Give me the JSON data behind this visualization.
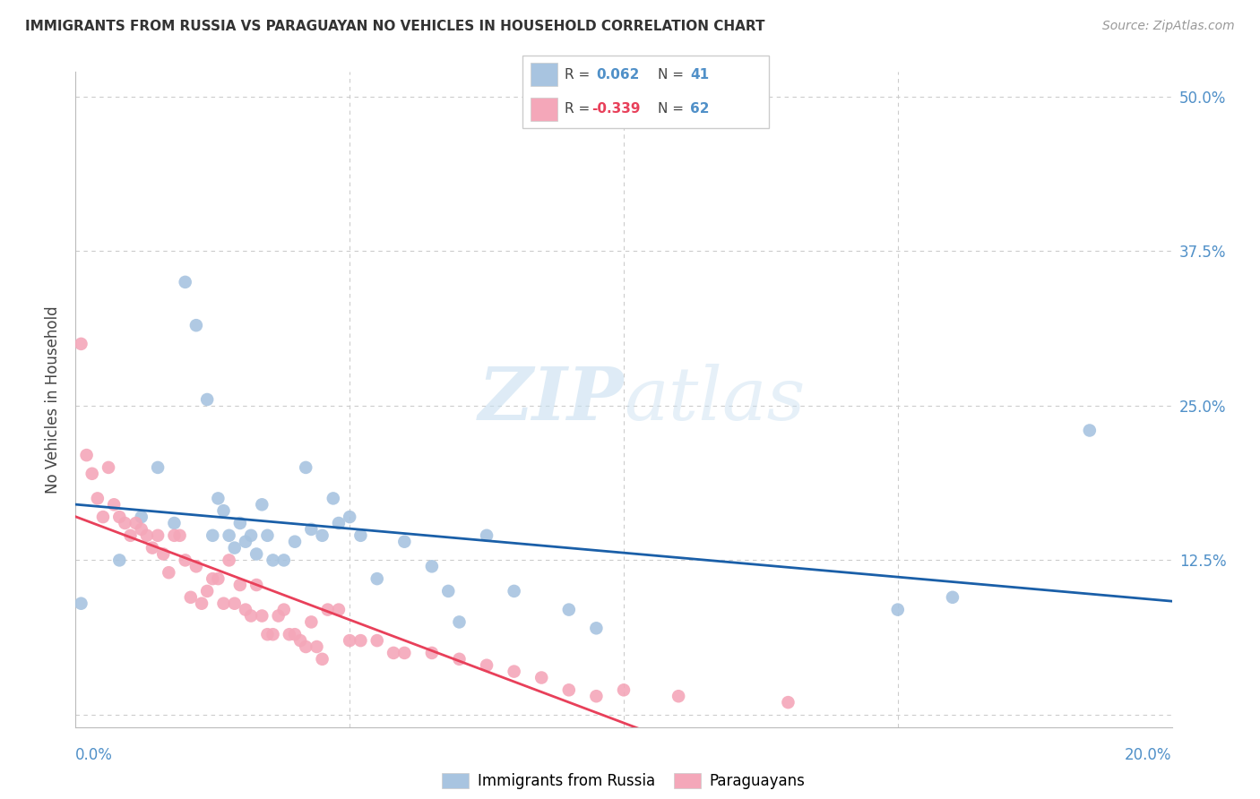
{
  "title": "IMMIGRANTS FROM RUSSIA VS PARAGUAYAN NO VEHICLES IN HOUSEHOLD CORRELATION CHART",
  "source": "Source: ZipAtlas.com",
  "ylabel": "No Vehicles in Household",
  "yticks": [
    0.0,
    0.125,
    0.25,
    0.375,
    0.5
  ],
  "ytick_labels": [
    "",
    "12.5%",
    "25.0%",
    "37.5%",
    "50.0%"
  ],
  "xlim": [
    0.0,
    0.2
  ],
  "ylim": [
    -0.01,
    0.52
  ],
  "russia_color": "#a8c4e0",
  "paraguay_color": "#f4a7b9",
  "russia_line_color": "#1a5fa8",
  "paraguay_line_color": "#e8405a",
  "watermark_zip": "ZIP",
  "watermark_atlas": "atlas",
  "russia_x": [
    0.001,
    0.008,
    0.012,
    0.015,
    0.018,
    0.02,
    0.022,
    0.024,
    0.025,
    0.026,
    0.027,
    0.028,
    0.029,
    0.03,
    0.031,
    0.032,
    0.033,
    0.034,
    0.035,
    0.036,
    0.038,
    0.04,
    0.042,
    0.043,
    0.045,
    0.047,
    0.048,
    0.05,
    0.052,
    0.055,
    0.06,
    0.065,
    0.068,
    0.07,
    0.075,
    0.08,
    0.09,
    0.095,
    0.15,
    0.16,
    0.185
  ],
  "russia_y": [
    0.09,
    0.125,
    0.16,
    0.2,
    0.155,
    0.35,
    0.315,
    0.255,
    0.145,
    0.175,
    0.165,
    0.145,
    0.135,
    0.155,
    0.14,
    0.145,
    0.13,
    0.17,
    0.145,
    0.125,
    0.125,
    0.14,
    0.2,
    0.15,
    0.145,
    0.175,
    0.155,
    0.16,
    0.145,
    0.11,
    0.14,
    0.12,
    0.1,
    0.075,
    0.145,
    0.1,
    0.085,
    0.07,
    0.085,
    0.095,
    0.23
  ],
  "paraguay_x": [
    0.001,
    0.002,
    0.003,
    0.004,
    0.005,
    0.006,
    0.007,
    0.008,
    0.009,
    0.01,
    0.011,
    0.012,
    0.013,
    0.014,
    0.015,
    0.016,
    0.017,
    0.018,
    0.019,
    0.02,
    0.021,
    0.022,
    0.023,
    0.024,
    0.025,
    0.026,
    0.027,
    0.028,
    0.029,
    0.03,
    0.031,
    0.032,
    0.033,
    0.034,
    0.035,
    0.036,
    0.037,
    0.038,
    0.039,
    0.04,
    0.041,
    0.042,
    0.043,
    0.044,
    0.045,
    0.046,
    0.048,
    0.05,
    0.052,
    0.055,
    0.058,
    0.06,
    0.065,
    0.07,
    0.075,
    0.08,
    0.085,
    0.09,
    0.095,
    0.1,
    0.11,
    0.13
  ],
  "paraguay_y": [
    0.3,
    0.21,
    0.195,
    0.175,
    0.16,
    0.2,
    0.17,
    0.16,
    0.155,
    0.145,
    0.155,
    0.15,
    0.145,
    0.135,
    0.145,
    0.13,
    0.115,
    0.145,
    0.145,
    0.125,
    0.095,
    0.12,
    0.09,
    0.1,
    0.11,
    0.11,
    0.09,
    0.125,
    0.09,
    0.105,
    0.085,
    0.08,
    0.105,
    0.08,
    0.065,
    0.065,
    0.08,
    0.085,
    0.065,
    0.065,
    0.06,
    0.055,
    0.075,
    0.055,
    0.045,
    0.085,
    0.085,
    0.06,
    0.06,
    0.06,
    0.05,
    0.05,
    0.05,
    0.045,
    0.04,
    0.035,
    0.03,
    0.02,
    0.015,
    0.02,
    0.015,
    0.01
  ]
}
